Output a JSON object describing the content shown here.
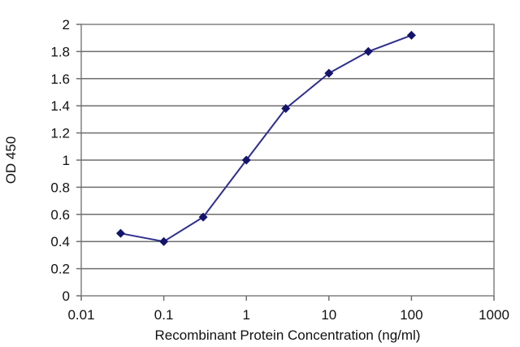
{
  "chart_data": {
    "type": "line",
    "xlabel": "Recombinant Protein Concentration (ng/ml)",
    "ylabel": "OD 450",
    "x_scale": "log",
    "xlim": [
      0.01,
      1000
    ],
    "ylim": [
      0,
      2
    ],
    "x_ticks": [
      0.01,
      0.1,
      1,
      10,
      100,
      1000
    ],
    "x_tick_labels": [
      "0.01",
      "0.1",
      "1",
      "10",
      "100",
      "1000"
    ],
    "y_ticks": [
      0,
      0.2,
      0.4,
      0.6,
      0.8,
      1,
      1.2,
      1.4,
      1.6,
      1.8,
      2
    ],
    "y_tick_labels": [
      "0",
      "0.2",
      "0.4",
      "0.6",
      "0.8",
      "1",
      "1.2",
      "1.4",
      "1.6",
      "1.8",
      "2"
    ],
    "grid": "horizontal",
    "legend": "none",
    "series": [
      {
        "x": [
          0.03,
          0.1,
          0.3,
          1,
          3,
          10,
          30,
          100
        ],
        "y": [
          0.46,
          0.4,
          0.58,
          1.0,
          1.38,
          1.64,
          1.8,
          1.92
        ],
        "color": "#2e2e8f",
        "marker": "diamond",
        "marker_color": "#14146b"
      }
    ]
  }
}
